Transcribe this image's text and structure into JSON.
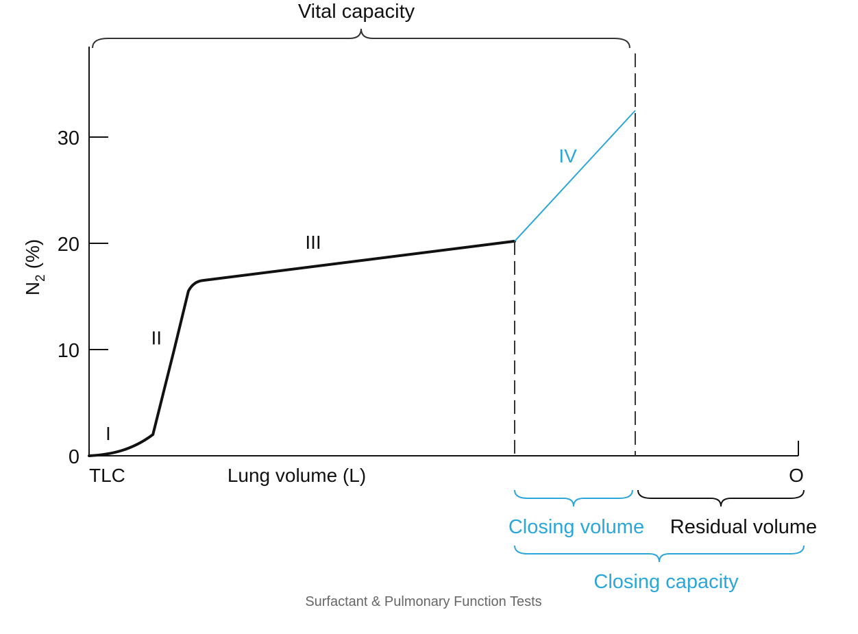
{
  "chart_data": {
    "type": "line",
    "title": "",
    "xlabel": "Lung volume (L)",
    "ylabel_base": "N",
    "ylabel_sub": "2",
    "ylabel_unit": "(%)",
    "yticks": [
      0,
      10,
      20,
      30
    ],
    "ylim": [
      0,
      34
    ],
    "x_start_label": "TLC",
    "x_end_label": "O",
    "phases": [
      {
        "label": "I",
        "x": [
          0.0,
          0.03,
          0.06,
          0.09
        ],
        "y": [
          0,
          0.1,
          0.5,
          2
        ]
      },
      {
        "label": "II",
        "x": [
          0.09,
          0.12,
          0.14
        ],
        "y": [
          2,
          10,
          15.5
        ]
      },
      {
        "label": "III",
        "x": [
          0.14,
          0.16,
          0.6
        ],
        "y": [
          15.5,
          16.5,
          20.2
        ]
      },
      {
        "label": "IV",
        "x": [
          0.6,
          0.77
        ],
        "y": [
          20.2,
          32.5
        ]
      }
    ],
    "closing_volume_x": 0.6,
    "residual_volume_x": 0.77,
    "annotations": {
      "vital_capacity": "Vital capacity",
      "closing_volume": "Closing volume",
      "residual_volume": "Residual volume",
      "closing_capacity": "Closing capacity"
    },
    "colors": {
      "main": "#111111",
      "phase_iv": "#2aa7d8",
      "brace": "#333333"
    }
  },
  "caption": "Surfactant & Pulmonary Function Tests"
}
